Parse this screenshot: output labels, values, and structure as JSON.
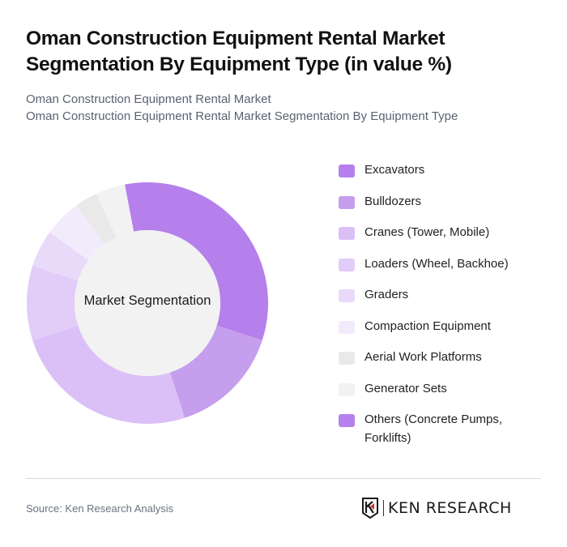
{
  "header": {
    "title": "Oman Construction Equipment Rental Market Segmentation By Equipment Type (in value %)",
    "subtitle_line1": "Oman Construction Equipment Rental Market",
    "subtitle_line2": "Oman Construction Equipment Rental Market Segmentation By Equipment Type"
  },
  "chart_data": {
    "type": "pie",
    "variant": "donut",
    "title": "Oman Construction Equipment Rental Market Segmentation By Equipment Type (in value %)",
    "center_label": "Market Segmentation",
    "categories": [
      "Excavators",
      "Bulldozers",
      "Cranes (Tower, Mobile)",
      "Loaders (Wheel, Backhoe)",
      "Graders",
      "Compaction Equipment",
      "Aerial Work Platforms",
      "Generator Sets",
      "Others (Concrete Pumps, Forklifts)"
    ],
    "values": [
      30,
      15,
      25,
      10,
      5,
      5,
      3,
      4,
      3
    ],
    "colors": [
      "#B580EB",
      "#C59EEE",
      "#DBC0F7",
      "#E2CCF8",
      "#E9DAFA",
      "#F2EBFC",
      "#E9E9E9",
      "#F2F2F2",
      "#B580EB"
    ],
    "start_angle": "top, clockwise",
    "legend_position": "right"
  },
  "legend": {
    "items": [
      {
        "label": "Excavators",
        "color": "#B580EB"
      },
      {
        "label": "Bulldozers",
        "color": "#C59EEE"
      },
      {
        "label": "Cranes (Tower, Mobile)",
        "color": "#DBC0F7"
      },
      {
        "label": "Loaders (Wheel, Backhoe)",
        "color": "#E2CCF8"
      },
      {
        "label": "Graders",
        "color": "#E9DAFA"
      },
      {
        "label": "Compaction Equipment",
        "color": "#F2EBFC"
      },
      {
        "label": "Aerial Work Platforms",
        "color": "#E9E9E9"
      },
      {
        "label": "Generator Sets",
        "color": "#F2F2F2"
      },
      {
        "label": "Others (Concrete Pumps, Forklifts)",
        "color": "#B580EB"
      }
    ]
  },
  "footer": {
    "source": "Source: Ken Research Analysis",
    "logo_text": "KEN RESEARCH"
  }
}
